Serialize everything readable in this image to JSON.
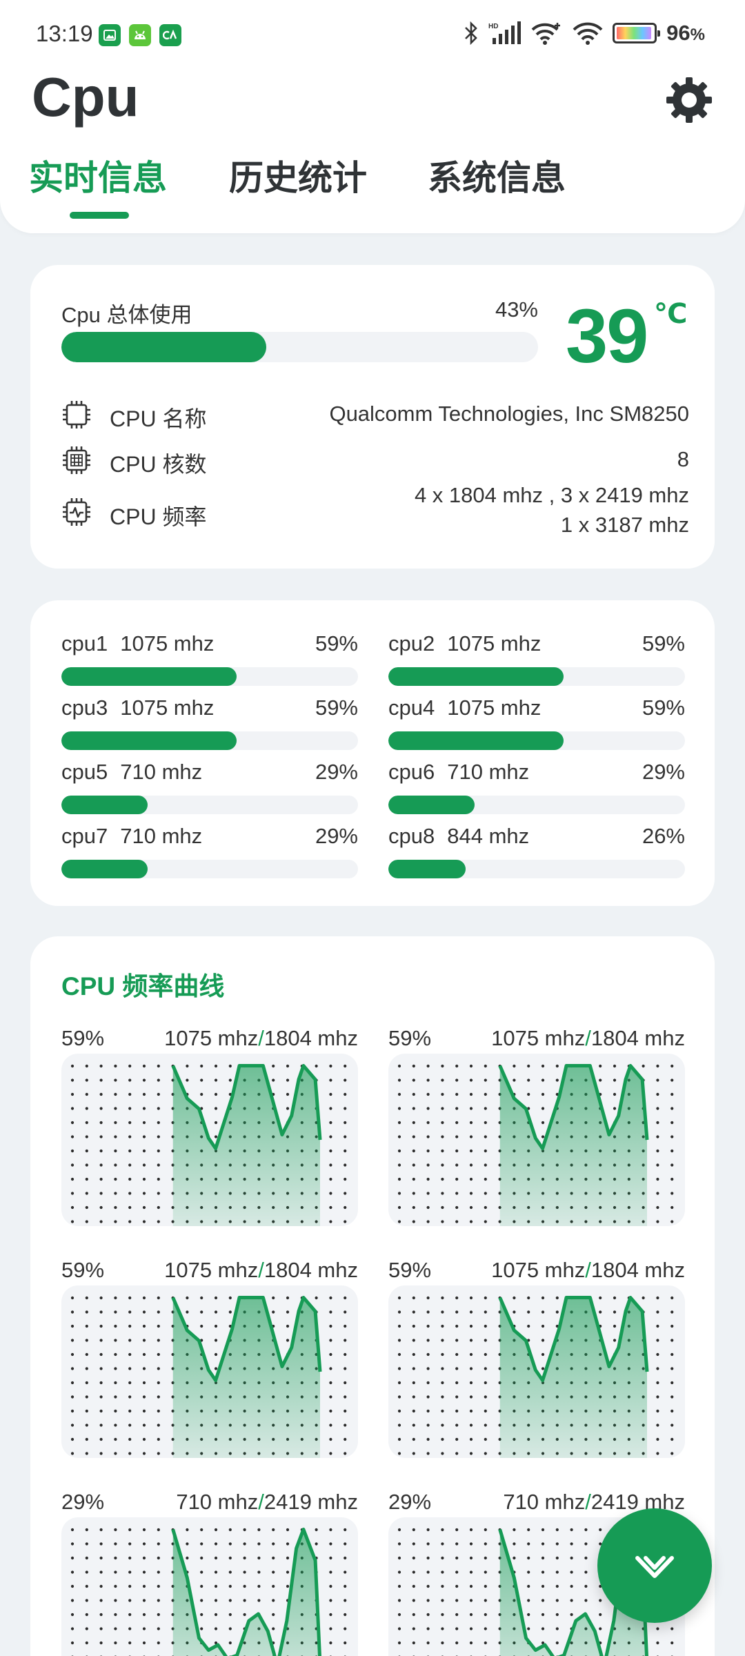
{
  "status_bar": {
    "time": "13:19",
    "battery": "96",
    "battery_unit": "%",
    "battery_level": 0.96,
    "notifications": [
      "image-app-icon",
      "android-app-icon",
      "ca-app-icon"
    ]
  },
  "app": {
    "title": "Cpu"
  },
  "tabs": [
    {
      "label": "实时信息",
      "active": true
    },
    {
      "label": "历史统计",
      "active": false
    },
    {
      "label": "系统信息",
      "active": false
    }
  ],
  "overview": {
    "usage_label": "Cpu 总体使用",
    "usage_pct": "43%",
    "usage_value": 0.43,
    "temperature": "39",
    "temperature_unit": "℃",
    "rows": [
      {
        "icon": "chip-icon",
        "label": "CPU 名称",
        "value": "Qualcomm Technologies, Inc SM8250"
      },
      {
        "icon": "cores-icon",
        "label": "CPU 核数",
        "value": "8"
      },
      {
        "icon": "frequency-icon",
        "label": "CPU 频率",
        "value_line1": "4 x 1804 mhz , 3 x 2419 mhz",
        "value_line2": "1 x 3187 mhz"
      }
    ]
  },
  "cores": [
    {
      "name": "cpu1",
      "freq": "1075 mhz",
      "pct": "59%",
      "value": 0.59
    },
    {
      "name": "cpu2",
      "freq": "1075 mhz",
      "pct": "59%",
      "value": 0.59
    },
    {
      "name": "cpu3",
      "freq": "1075 mhz",
      "pct": "59%",
      "value": 0.59
    },
    {
      "name": "cpu4",
      "freq": "1075 mhz",
      "pct": "59%",
      "value": 0.59
    },
    {
      "name": "cpu5",
      "freq": "710 mhz",
      "pct": "29%",
      "value": 0.29
    },
    {
      "name": "cpu6",
      "freq": "710 mhz",
      "pct": "29%",
      "value": 0.29
    },
    {
      "name": "cpu7",
      "freq": "710 mhz",
      "pct": "29%",
      "value": 0.29
    },
    {
      "name": "cpu8",
      "freq": "844 mhz",
      "pct": "26%",
      "value": 0.26
    }
  ],
  "curves": {
    "title": "CPU 频率曲线",
    "graphs": [
      {
        "pct": "59%",
        "current": "1075 mhz",
        "max": "1804 mhz",
        "shape": "a"
      },
      {
        "pct": "59%",
        "current": "1075 mhz",
        "max": "1804 mhz",
        "shape": "a"
      },
      {
        "pct": "59%",
        "current": "1075 mhz",
        "max": "1804 mhz",
        "shape": "a"
      },
      {
        "pct": "59%",
        "current": "1075 mhz",
        "max": "1804 mhz",
        "shape": "a"
      },
      {
        "pct": "29%",
        "current": "710 mhz",
        "max": "2419 mhz",
        "shape": "b"
      },
      {
        "pct": "29%",
        "current": "710 mhz",
        "max": "2419 mhz",
        "shape": "b"
      }
    ]
  },
  "colors": {
    "accent": "#169b55",
    "track": "#f1f3f6",
    "background": "#eef2f5"
  },
  "fab": {
    "icon": "chevron-down-icon"
  }
}
